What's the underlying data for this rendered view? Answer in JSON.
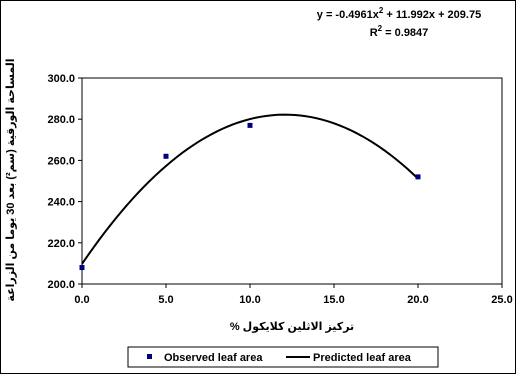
{
  "chart_data": {
    "type": "scatter",
    "title": "",
    "xlabel": "تركيز الاثلين كلايكول %",
    "ylabel": "المساحة الورقية (سم²) بعد 30 يوما من الزراعة",
    "xlim": [
      0,
      25
    ],
    "ylim": [
      200,
      300
    ],
    "x_ticks": [
      "0.0",
      "5.0",
      "10.0",
      "15.0",
      "20.0",
      "25.0"
    ],
    "y_ticks": [
      "200.0",
      "220.0",
      "240.0",
      "260.0",
      "280.0",
      "300.0"
    ],
    "grid": false,
    "series": [
      {
        "name": "Observed leaf area",
        "kind": "markers",
        "x": [
          0,
          5,
          10,
          20
        ],
        "y": [
          208,
          262,
          277,
          252
        ]
      },
      {
        "name": "Predicted leaf area",
        "kind": "line",
        "model": {
          "a": -0.4961,
          "b": 11.992,
          "c": 209.75
        },
        "x_range": [
          0,
          20
        ]
      }
    ],
    "annotation": {
      "equation_prefix": "y = -0.4961x",
      "equation_suffix": " + 11.992x + 209.75",
      "r2_prefix": "R",
      "r2_suffix": " = 0.9847",
      "superscript": "2"
    },
    "legend": {
      "placement": "bottom",
      "items": [
        "Observed leaf area",
        "Predicted leaf area"
      ]
    },
    "colors": {
      "markers": "#00007f",
      "line": "#000000"
    }
  }
}
